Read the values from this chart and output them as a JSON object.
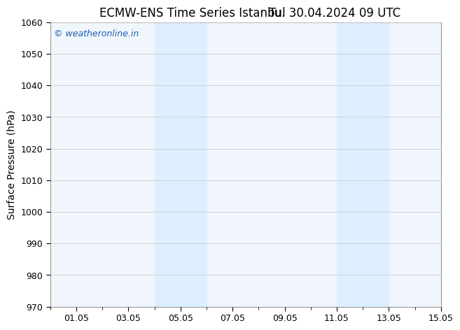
{
  "title_left": "ECMW-ENS Time Series Istanbul",
  "title_right": "Tu. 30.04.2024 09 UTC",
  "ylabel": "Surface Pressure (hPa)",
  "ylim": [
    970,
    1060
  ],
  "yticks": [
    970,
    980,
    990,
    1000,
    1010,
    1020,
    1030,
    1040,
    1050,
    1060
  ],
  "xlim_start": 0.0,
  "xlim_end": 15.0,
  "xtick_positions": [
    1,
    3,
    5,
    7,
    9,
    11,
    13,
    15
  ],
  "xtick_labels": [
    "01.05",
    "03.05",
    "05.05",
    "07.05",
    "09.05",
    "11.05",
    "13.05",
    "15.05"
  ],
  "shaded_bands": [
    {
      "x_start": 4.0,
      "x_end": 6.0
    },
    {
      "x_start": 11.0,
      "x_end": 13.0
    }
  ],
  "shade_color": "#ddeeff",
  "plot_bg_color": "#f0f6fc",
  "background_color": "#ffffff",
  "watermark_text": "© weatheronline.in",
  "watermark_color": "#1a5fb4",
  "grid_color": "#cccccc",
  "border_color": "#999999",
  "title_fontsize": 12,
  "tick_label_fontsize": 9,
  "ylabel_fontsize": 10
}
